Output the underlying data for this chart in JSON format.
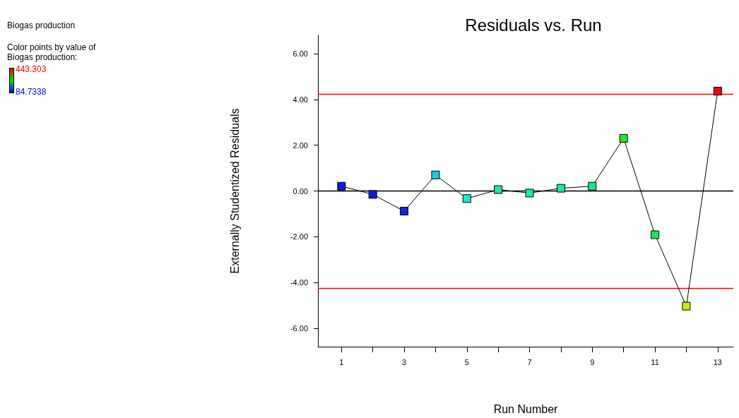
{
  "chart_data": {
    "type": "line",
    "title": "Residuals vs. Run",
    "subtitle": "Biogas production",
    "xlabel": "Run Number",
    "ylabel": "Externally Studentized Residuals",
    "clabel": "Color points by value of Biogas production:",
    "clim": [
      84.7338,
      443.303
    ],
    "cticks": [
      84.7338,
      443.303
    ],
    "x": [
      1,
      2,
      3,
      4,
      5,
      6,
      7,
      8,
      9,
      10,
      11,
      12,
      13
    ],
    "series": [
      {
        "color": "#000000",
        "colors": [
          "#0a1ee0",
          "#0a1ee6",
          "#0a28dc",
          "#1ec8f0",
          "#1ee6c8",
          "#1ee6a0",
          "#1ee6b4",
          "#1ee6a0",
          "#1ee68c",
          "#28e628",
          "#1ee650",
          "#c8f000",
          "#ff0000"
        ],
        "values": [
          0.21,
          -0.15,
          -0.88,
          0.7,
          -0.33,
          0.06,
          -0.09,
          0.12,
          0.21,
          2.3,
          -1.91,
          -5.03,
          4.36
        ]
      }
    ],
    "xlim": [
      0.25,
      13.5
    ],
    "xticks": [
      1,
      {
        "value": 2,
        "label": null
      },
      3,
      {
        "value": 4,
        "label": null
      },
      5,
      {
        "value": 6,
        "label": null
      },
      7,
      {
        "value": 8,
        "label": null
      },
      9,
      {
        "value": 10,
        "label": null
      },
      11,
      {
        "value": 12,
        "label": null
      },
      13
    ],
    "ylim": [
      -6.8,
      6.8
    ],
    "yticks": [
      {
        "value": -6,
        "label": "-6.00"
      },
      {
        "value": -4,
        "label": "-4.00"
      },
      {
        "value": -2,
        "label": "-2.00"
      },
      {
        "value": 0,
        "label": "0.00"
      },
      {
        "value": 2,
        "label": "2.00"
      },
      {
        "value": 4,
        "label": "4.00"
      },
      {
        "value": 6,
        "label": "6.00"
      }
    ],
    "ref_lines": [
      {
        "axis": "y",
        "value": 4.24,
        "color": "#ff0000"
      },
      {
        "axis": "y",
        "value": 0,
        "color": "#000000"
      },
      {
        "axis": "y",
        "value": -4.24,
        "color": "#ff0000"
      }
    ],
    "grid": false,
    "marker": "square",
    "line_style": "solid"
  }
}
